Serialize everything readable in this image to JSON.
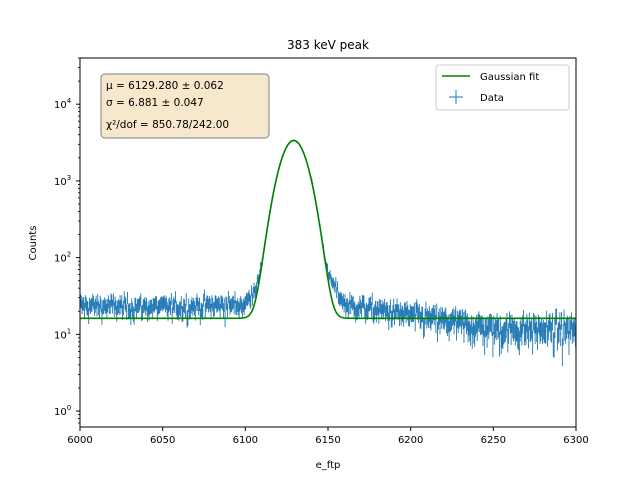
{
  "chart_data": {
    "type": "line",
    "title": "383 keV peak",
    "xlabel": "e_ftp",
    "ylabel": "Counts",
    "xlim": [
      6000,
      6300
    ],
    "ylim": [
      0.62,
      40000
    ],
    "yscale": "log",
    "x_ticks": [
      "6000",
      "6050",
      "6100",
      "6150",
      "6200",
      "6250",
      "6300"
    ],
    "y_ticks": [
      "10^0",
      "10^1",
      "10^2",
      "10^3",
      "10^4"
    ],
    "grid": false,
    "legend_position": "top-right",
    "legend": [
      "Gaussian fit",
      "Data"
    ],
    "annotation_lines": [
      "μ = 6129.280 ± 0.062",
      "σ = 6.881 ± 0.047",
      "χ²/dof = 850.78/242.00"
    ],
    "fit": {
      "mu": 6129.28,
      "sigma": 6.881,
      "amplitude": 3350,
      "background": 16.2
    },
    "data_profile": [
      [
        6000,
        24
      ],
      [
        6050,
        23
      ],
      [
        6100,
        25
      ],
      [
        6110,
        60
      ],
      [
        6120,
        1100
      ],
      [
        6129,
        3350
      ],
      [
        6140,
        1100
      ],
      [
        6150,
        60
      ],
      [
        6160,
        25
      ],
      [
        6200,
        18
      ],
      [
        6250,
        12
      ],
      [
        6300,
        12
      ]
    ],
    "series": [
      {
        "name": "Gaussian fit",
        "color": "#008000"
      },
      {
        "name": "Data",
        "color": "#1f77b4"
      }
    ]
  }
}
